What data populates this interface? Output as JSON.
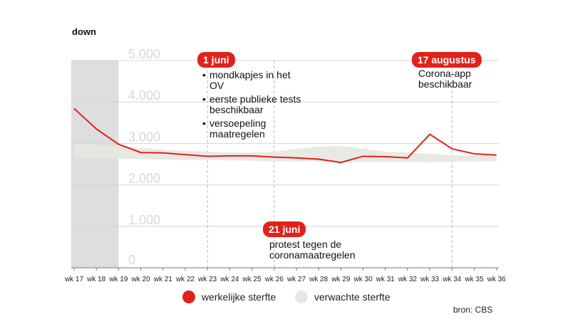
{
  "corner_label": "down",
  "source": "bron: CBS",
  "legend": {
    "actual": "werkelijke sterfte",
    "expected": "verwachte sterfte"
  },
  "annotations": [
    {
      "date": "1 juni",
      "week": "wk 23",
      "bullets": [
        "mondkapjes in het OV",
        "eerste publieke tests beschikbaar",
        "versoepeling maatregelen"
      ]
    },
    {
      "date": "21 juni",
      "week": "wk 26",
      "text": "protest tegen de coronamaatregelen"
    },
    {
      "date": "17 augustus",
      "week": "wk 34",
      "text": "Corona-app beschikbaar"
    }
  ],
  "chart_data": {
    "type": "line",
    "categories": [
      "wk 17",
      "wk 18",
      "wk 19",
      "wk 20",
      "wk 21",
      "wk 22",
      "wk 23",
      "wk 24",
      "wk 25",
      "wk 26",
      "wk 27",
      "wk 28",
      "wk 29",
      "wk 30",
      "wk 31",
      "wk 32",
      "wk 33",
      "wk 34",
      "wk 35",
      "wk 36"
    ],
    "ylim": [
      0,
      5000
    ],
    "yticks": [
      "0",
      "1.000",
      "2.000",
      "3.000",
      "4.000",
      "5.000"
    ],
    "shaded_region": [
      "wk 17",
      "wk 19"
    ],
    "series": [
      {
        "name": "werkelijke sterfte",
        "color": "#e1221a",
        "values": [
          3840,
          3350,
          2980,
          2780,
          2770,
          2730,
          2690,
          2700,
          2700,
          2670,
          2650,
          2620,
          2540,
          2690,
          2680,
          2650,
          3220,
          2870,
          2750,
          2720
        ]
      },
      {
        "name": "verwachte sterfte",
        "color": "#e7e7e1",
        "type": "band",
        "lower": [
          2640,
          2640,
          2630,
          2620,
          2610,
          2600,
          2600,
          2590,
          2580,
          2570,
          2560,
          2560,
          2550,
          2550,
          2550,
          2550,
          2540,
          2560,
          2560,
          2570
        ],
        "upper": [
          2970,
          2960,
          2940,
          2890,
          2850,
          2820,
          2800,
          2780,
          2780,
          2800,
          2870,
          2920,
          2940,
          2870,
          2800,
          2780,
          2750,
          2720,
          2710,
          2710
        ]
      }
    ]
  }
}
